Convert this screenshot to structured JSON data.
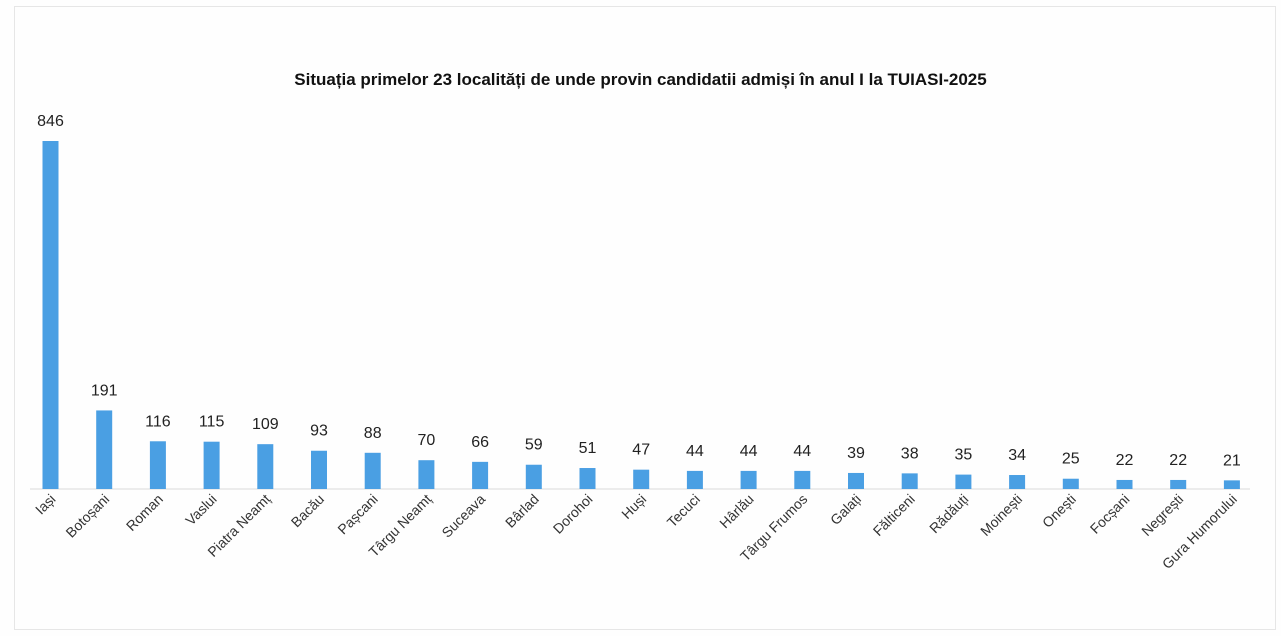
{
  "chart_data": {
    "type": "bar",
    "title": "Situația primelor 23 localități de unde provin candidatii admiși în anul I la TUIASI-2025",
    "xlabel": "",
    "ylabel": "",
    "categories": [
      "Iași",
      "Botoșani",
      "Roman",
      "Vaslui",
      "Piatra Neamț",
      "Bacău",
      "Pașcani",
      "Târgu Neamț",
      "Suceava",
      "Bârlad",
      "Dorohoi",
      "Huși",
      "Tecuci",
      "Hârlău",
      "Târgu Frumos",
      "Galați",
      "Fălticeni",
      "Rădăuți",
      "Moinești",
      "Onești",
      "Focșani",
      "Negrești",
      "Gura Humorului"
    ],
    "values": [
      846,
      191,
      116,
      115,
      109,
      93,
      88,
      70,
      66,
      59,
      51,
      47,
      44,
      44,
      44,
      39,
      38,
      35,
      34,
      25,
      22,
      22,
      21
    ],
    "ylim": [
      0,
      846
    ],
    "grid": false,
    "legend": "none",
    "bar_color": "#4a9fe3"
  }
}
